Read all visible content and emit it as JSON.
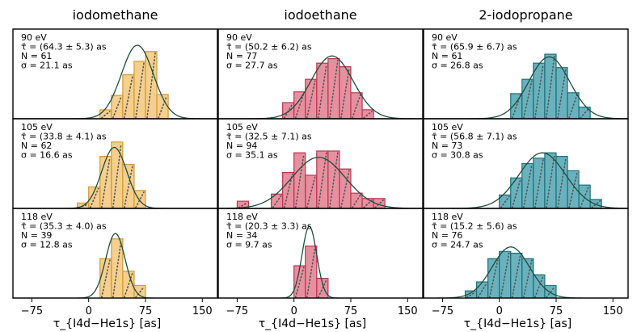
{
  "chart_data": {
    "type": "bar",
    "layout": "3x3 histogram grid",
    "xlabel": "τ_{I4d−He1s} [as]",
    "xlim": [
      -100,
      170
    ],
    "xticks": [
      -75,
      0,
      75,
      150
    ],
    "column_titles": [
      "iodomethane",
      "iodoethane",
      "2-iodopropane"
    ],
    "bin_width": 15,
    "colors": {
      "iodomethane": {
        "fill": "#f3c77a",
        "edge": "#d49a2e"
      },
      "iodoethane": {
        "fill": "#e27d8e",
        "edge": "#b8374f"
      },
      "2-iodopropane": {
        "fill": "#4fa5b2",
        "edge": "#1d6f7c"
      },
      "gaussian": "#1f4d3d",
      "rug": "#555555"
    },
    "panels": [
      {
        "molecule": "iodomethane",
        "energy": "90 eV",
        "tau": "τ̄ = (64.3 ± 5.3) as",
        "n": "N = 61",
        "sigma": "σ = 21.1 as",
        "mean": 64.3,
        "sd": 21.1,
        "amp": 0.82,
        "bins": [
          {
            "start": 15,
            "h": 0.1
          },
          {
            "start": 30,
            "h": 0.26
          },
          {
            "start": 45,
            "h": 0.49
          },
          {
            "start": 60,
            "h": 0.64
          },
          {
            "start": 75,
            "h": 0.75
          },
          {
            "start": 90,
            "h": 0.27
          }
        ]
      },
      {
        "molecule": "iodoethane",
        "energy": "90 eV",
        "tau": "τ̄ = (50.2 ± 6.2) as",
        "n": "N = 77",
        "sigma": "σ = 27.7 as",
        "mean": 50.2,
        "sd": 27.7,
        "amp": 0.7,
        "bins": [
          {
            "start": -15,
            "h": 0.18
          },
          {
            "start": 0,
            "h": 0.3
          },
          {
            "start": 15,
            "h": 0.44
          },
          {
            "start": 30,
            "h": 0.62
          },
          {
            "start": 45,
            "h": 0.67
          },
          {
            "start": 60,
            "h": 0.58
          },
          {
            "start": 75,
            "h": 0.29
          },
          {
            "start": 90,
            "h": 0.1
          }
        ]
      },
      {
        "molecule": "2-iodopropane",
        "energy": "90 eV",
        "tau": "τ̄ = (65.9 ± 6.7) as",
        "n": "N = 61",
        "sigma": "σ = 26.8 as",
        "mean": 65.9,
        "sd": 26.8,
        "amp": 0.69,
        "bins": [
          {
            "start": 15,
            "h": 0.28
          },
          {
            "start": 30,
            "h": 0.44
          },
          {
            "start": 45,
            "h": 0.62
          },
          {
            "start": 60,
            "h": 0.72
          },
          {
            "start": 75,
            "h": 0.57
          },
          {
            "start": 90,
            "h": 0.29
          },
          {
            "start": 105,
            "h": 0.13
          }
        ]
      },
      {
        "molecule": "iodomethane",
        "energy": "105 eV",
        "tau": "τ̄ = (33.8 ± 4.1) as",
        "n": "N = 62",
        "sigma": "σ = 16.6 as",
        "mean": 33.8,
        "sd": 16.6,
        "amp": 0.68,
        "bins": [
          {
            "start": -15,
            "h": 0.06
          },
          {
            "start": 0,
            "h": 0.24
          },
          {
            "start": 15,
            "h": 0.58
          },
          {
            "start": 30,
            "h": 0.74
          },
          {
            "start": 45,
            "h": 0.49
          },
          {
            "start": 60,
            "h": 0.2
          }
        ]
      },
      {
        "molecule": "iodoethane",
        "energy": "105 eV",
        "tau": "τ̄ = (32.5 ± 7.1) as",
        "n": "N = 94",
        "sigma": "σ = 35.1 as",
        "mean": 32.5,
        "sd": 35.1,
        "amp": 0.57,
        "bins": [
          {
            "start": -75,
            "h": 0.08
          },
          {
            "start": -30,
            "h": 0.16
          },
          {
            "start": -15,
            "h": 0.4
          },
          {
            "start": 0,
            "h": 0.62
          },
          {
            "start": 15,
            "h": 0.37
          },
          {
            "start": 30,
            "h": 0.64
          },
          {
            "start": 45,
            "h": 0.64
          },
          {
            "start": 60,
            "h": 0.44
          },
          {
            "start": 75,
            "h": 0.17
          },
          {
            "start": 90,
            "h": 0.11
          },
          {
            "start": 105,
            "h": 0.11
          }
        ]
      },
      {
        "molecule": "2-iodopropane",
        "energy": "105 eV",
        "tau": "τ̄ = (56.8 ± 7.1) as",
        "n": "N = 73",
        "sigma": "σ = 30.8 as",
        "mean": 56.8,
        "sd": 30.8,
        "amp": 0.62,
        "bins": [
          {
            "start": 0,
            "h": 0.15
          },
          {
            "start": 15,
            "h": 0.34
          },
          {
            "start": 30,
            "h": 0.5
          },
          {
            "start": 45,
            "h": 0.56
          },
          {
            "start": 60,
            "h": 0.62
          },
          {
            "start": 75,
            "h": 0.58
          },
          {
            "start": 90,
            "h": 0.42
          },
          {
            "start": 105,
            "h": 0.26
          },
          {
            "start": 120,
            "h": 0.1
          }
        ]
      },
      {
        "molecule": "iodomethane",
        "energy": "118 eV",
        "tau": "τ̄ = (35.3 ± 4.0) as",
        "n": "N = 39",
        "sigma": "σ = 12.8 as",
        "mean": 35.3,
        "sd": 12.8,
        "amp": 0.72,
        "bins": [
          {
            "start": 15,
            "h": 0.44
          },
          {
            "start": 30,
            "h": 0.66
          },
          {
            "start": 45,
            "h": 0.3
          },
          {
            "start": 60,
            "h": 0.14
          }
        ]
      },
      {
        "molecule": "iodoethane",
        "energy": "118 eV",
        "tau": "τ̄ = (20.3 ± 3.3) as",
        "n": "N = 34",
        "sigma": "σ = 9.7 as",
        "mean": 20.3,
        "sd": 9.7,
        "amp": 0.8,
        "bins": [
          {
            "start": 0,
            "h": 0.36
          },
          {
            "start": 15,
            "h": 0.58
          },
          {
            "start": 30,
            "h": 0.22
          }
        ]
      },
      {
        "molecule": "2-iodopropane",
        "energy": "118 eV",
        "tau": "τ̄ = (15.2 ± 5.6) as",
        "n": "N = 76",
        "sigma": "σ = 24.7 as",
        "mean": 15.2,
        "sd": 24.7,
        "amp": 0.57,
        "bins": [
          {
            "start": -45,
            "h": 0.08
          },
          {
            "start": -30,
            "h": 0.18
          },
          {
            "start": -15,
            "h": 0.44
          },
          {
            "start": 0,
            "h": 0.52
          },
          {
            "start": 15,
            "h": 0.5
          },
          {
            "start": 30,
            "h": 0.44
          },
          {
            "start": 45,
            "h": 0.26
          },
          {
            "start": 60,
            "h": 0.14
          }
        ]
      }
    ]
  }
}
